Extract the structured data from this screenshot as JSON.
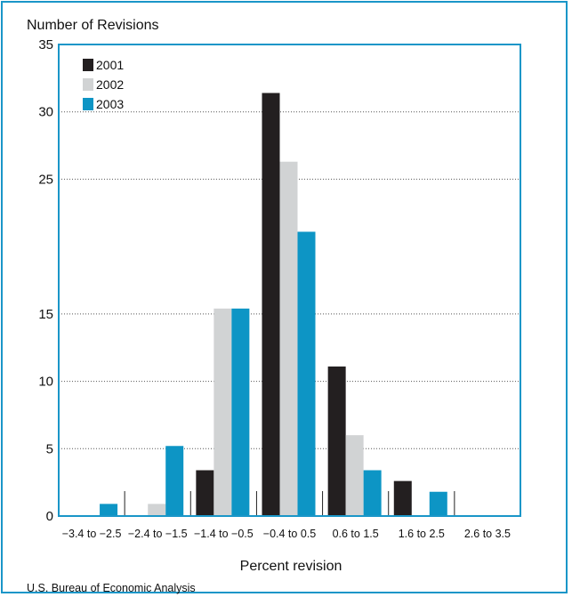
{
  "chart_data": {
    "type": "bar",
    "ylabel": "Number of Revisions",
    "xlabel": "Percent revision",
    "source": "U.S. Bureau of Economic Analysis",
    "ylim": [
      0,
      35
    ],
    "yticks": [
      0,
      5,
      10,
      15,
      25,
      30,
      35
    ],
    "grid": true,
    "legend_position": "top-left",
    "categories": [
      "−3.4 to −2.5",
      "−2.4 to −1.5",
      "−1.4 to −0.5",
      "−0.4 to 0.5",
      "0.6 to 1.5",
      "1.6 to 2.5",
      "2.6 to 3.5"
    ],
    "series": [
      {
        "name": "2001",
        "color": "#231f20",
        "values": [
          0,
          0,
          3.4,
          31.4,
          11.1,
          2.6,
          0
        ]
      },
      {
        "name": "2002",
        "color": "#d1d3d4",
        "values": [
          0,
          0.9,
          15.4,
          26.3,
          6.0,
          0,
          0
        ]
      },
      {
        "name": "2003",
        "color": "#0d95c5",
        "values": [
          0.9,
          5.2,
          15.4,
          21.1,
          3.4,
          1.8,
          0
        ]
      }
    ]
  }
}
